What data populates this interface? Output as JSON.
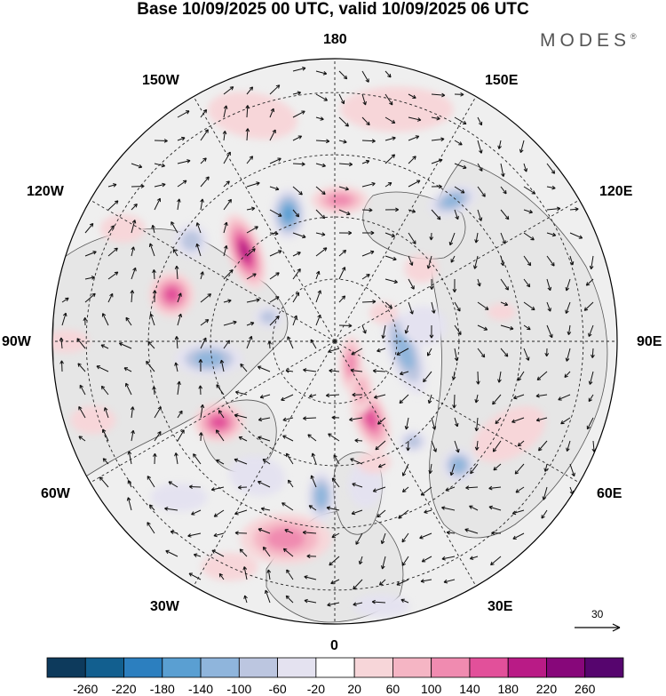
{
  "title": "Base 10/09/2025 00 UTC, valid 10/09/2025 06 UTC",
  "brand": "MODES",
  "brand_mark": "®",
  "longitude_labels": {
    "lon_180": "180",
    "lon_150w": "150W",
    "lon_150e": "150E",
    "lon_120w": "120W",
    "lon_120e": "120E",
    "lon_90w": "90W",
    "lon_90e": "90E",
    "lon_60w": "60W",
    "lon_60e": "60E",
    "lon_30w": "30W",
    "lon_30e": "30E",
    "lon_0": "0"
  },
  "reference_vector": {
    "label": "30"
  },
  "colorbar": {
    "ticks": [
      "-260",
      "-220",
      "-180",
      "-140",
      "-100",
      "-60",
      "-20",
      "20",
      "60",
      "100",
      "140",
      "180",
      "220",
      "260"
    ],
    "colors": [
      "#0d3a5c",
      "#125f8f",
      "#2c7fbf",
      "#5a9fd2",
      "#8fb5dc",
      "#bcc6e0",
      "#e4e2f0",
      "#ffffff",
      "#f7d6d9",
      "#f5b5c4",
      "#f08bb0",
      "#e2509a",
      "#b91b86",
      "#87077a",
      "#56056e"
    ]
  },
  "blobs": [
    {
      "lon": -14,
      "r": 0.72,
      "rx": 0.16,
      "ry": 0.09,
      "rot": 0,
      "v": 120
    },
    {
      "lon": -30,
      "r": 0.55,
      "rx": 0.1,
      "ry": 0.07,
      "rot": 10,
      "v": -60
    },
    {
      "lon": -5,
      "r": 0.55,
      "rx": 0.05,
      "ry": 0.09,
      "rot": 0,
      "v": -140
    },
    {
      "lon": 12,
      "r": 0.52,
      "rx": 0.06,
      "ry": 0.08,
      "rot": 0,
      "v": -60
    },
    {
      "lon": 25,
      "r": 0.3,
      "rx": 0.06,
      "ry": 0.12,
      "rot": -20,
      "v": 180
    },
    {
      "lon": 18,
      "r": 0.45,
      "rx": 0.06,
      "ry": 0.04,
      "rot": 0,
      "v": 60
    },
    {
      "lon": 45,
      "r": 0.62,
      "rx": 0.06,
      "ry": 0.06,
      "rot": 0,
      "v": -140
    },
    {
      "lon": 38,
      "r": 0.45,
      "rx": 0.05,
      "ry": 0.04,
      "rot": 0,
      "v": -100
    },
    {
      "lon": 35,
      "r": 0.1,
      "rx": 0.04,
      "ry": 0.1,
      "rot": 0,
      "v": 140
    },
    {
      "lon": 28,
      "r": 0.2,
      "rx": 0.04,
      "ry": 0.08,
      "rot": 0,
      "v": 100
    },
    {
      "lon": 62,
      "r": 0.7,
      "rx": 0.14,
      "ry": 0.08,
      "rot": -30,
      "v": 60
    },
    {
      "lon": 82,
      "r": 0.25,
      "rx": 0.06,
      "ry": 0.16,
      "rot": -20,
      "v": -120
    },
    {
      "lon": 100,
      "r": 0.32,
      "rx": 0.08,
      "ry": 0.07,
      "rot": 0,
      "v": -60
    },
    {
      "lon": 100,
      "r": 0.6,
      "rx": 0.05,
      "ry": 0.03,
      "rot": 0,
      "v": 60
    },
    {
      "lon": 120,
      "r": 0.2,
      "rx": 0.05,
      "ry": 0.04,
      "rot": 0,
      "v": 60
    },
    {
      "lon": 140,
      "r": 0.65,
      "rx": 0.09,
      "ry": 0.05,
      "rot": -20,
      "v": -140
    },
    {
      "lon": 130,
      "r": 0.4,
      "rx": 0.06,
      "ry": 0.05,
      "rot": 0,
      "v": 60
    },
    {
      "lon": 165,
      "r": 0.85,
      "rx": 0.2,
      "ry": 0.08,
      "rot": 0,
      "v": 60
    },
    {
      "lon": 178,
      "r": 0.5,
      "rx": 0.1,
      "ry": 0.05,
      "rot": 0,
      "v": 140
    },
    {
      "lon": -160,
      "r": 0.48,
      "rx": 0.06,
      "ry": 0.09,
      "rot": 0,
      "v": -180
    },
    {
      "lon": -135,
      "r": 0.45,
      "rx": 0.06,
      "ry": 0.14,
      "rot": -20,
      "v": 220
    },
    {
      "lon": -160,
      "r": 0.85,
      "rx": 0.16,
      "ry": 0.08,
      "rot": 10,
      "v": 60
    },
    {
      "lon": -125,
      "r": 0.62,
      "rx": 0.06,
      "ry": 0.06,
      "rot": 0,
      "v": -100
    },
    {
      "lon": -106,
      "r": 0.6,
      "rx": 0.08,
      "ry": 0.08,
      "rot": 0,
      "v": 180
    },
    {
      "lon": -118,
      "r": 0.85,
      "rx": 0.08,
      "ry": 0.05,
      "rot": 0,
      "v": 60
    },
    {
      "lon": -82,
      "r": 0.45,
      "rx": 0.12,
      "ry": 0.06,
      "rot": 0,
      "v": -140
    },
    {
      "lon": -110,
      "r": 0.25,
      "rx": 0.05,
      "ry": 0.04,
      "rot": 0,
      "v": -100
    },
    {
      "lon": -55,
      "r": 0.5,
      "rx": 0.09,
      "ry": 0.07,
      "rot": 0,
      "v": 160
    },
    {
      "lon": -72,
      "r": 0.9,
      "rx": 0.08,
      "ry": 0.05,
      "rot": 0,
      "v": 60
    },
    {
      "lon": -45,
      "r": 0.78,
      "rx": 0.1,
      "ry": 0.05,
      "rot": 0,
      "v": -60
    },
    {
      "lon": -25,
      "r": 0.88,
      "rx": 0.1,
      "ry": 0.05,
      "rot": 0,
      "v": 60
    },
    {
      "lon": 10,
      "r": 0.95,
      "rx": 0.1,
      "ry": 0.04,
      "rot": 0,
      "v": -60
    },
    {
      "lon": -90,
      "r": 0.95,
      "rx": 0.08,
      "ry": 0.04,
      "rot": 0,
      "v": 60
    }
  ]
}
